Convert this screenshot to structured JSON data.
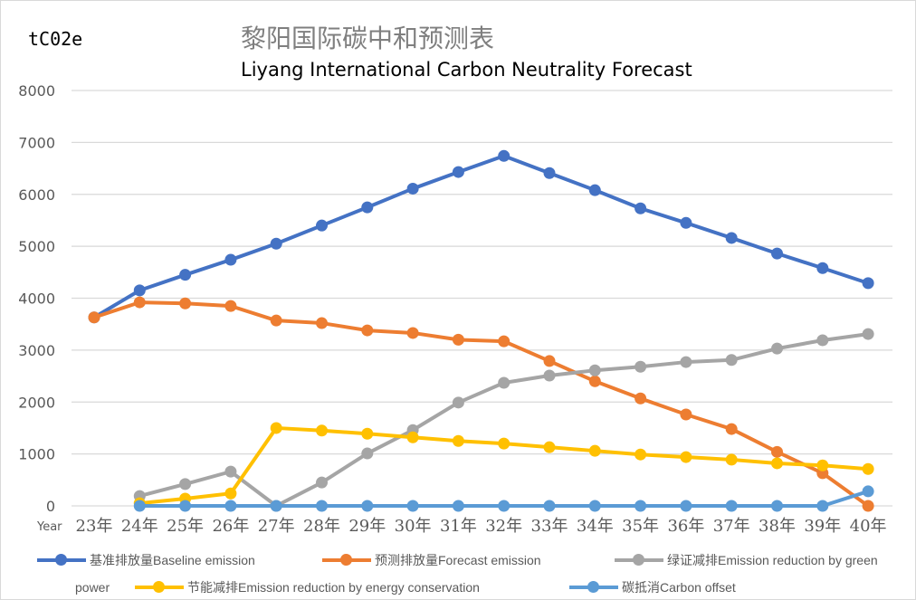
{
  "chart_data": {
    "type": "line",
    "title": "黎阳国际碳中和预测表",
    "subtitle": "Liyang International Carbon Neutrality Forecast",
    "ylabel": "tC02e",
    "xlabel": "Year",
    "ylim": [
      0,
      8000
    ],
    "yticks": [
      "0",
      "1000",
      "2000",
      "3000",
      "4000",
      "5000",
      "6000",
      "7000",
      "8000"
    ],
    "grid": true,
    "legend_position": "bottom",
    "categories": [
      "23年",
      "24年",
      "25年",
      "26年",
      "27年",
      "28年",
      "29年",
      "30年",
      "31年",
      "32年",
      "33年",
      "34年",
      "35年",
      "36年",
      "37年",
      "38年",
      "39年",
      "40年"
    ],
    "series": [
      {
        "name": "基准排放量Baseline emission",
        "color": "#4472c4",
        "values": [
          3630,
          4150,
          4450,
          4740,
          5050,
          5400,
          5750,
          6110,
          6430,
          6740,
          6410,
          6080,
          5730,
          5450,
          5160,
          4860,
          4580,
          4290
        ]
      },
      {
        "name": "预测排放量Forecast emission",
        "color": "#ed7d31",
        "values": [
          3630,
          3920,
          3900,
          3850,
          3570,
          3520,
          3380,
          3330,
          3200,
          3170,
          2790,
          2400,
          2070,
          1760,
          1480,
          1040,
          630,
          0
        ]
      },
      {
        "name": "绿证减排Emission reduction by green power",
        "color": "#a5a5a5",
        "values": [
          null,
          190,
          420,
          660,
          0,
          450,
          1010,
          1460,
          1990,
          2370,
          2510,
          2610,
          2680,
          2770,
          2810,
          3030,
          3190,
          3310
        ]
      },
      {
        "name": "节能减排Emission reduction by energy conservation",
        "color": "#ffc000",
        "values": [
          null,
          50,
          140,
          240,
          1500,
          1450,
          1390,
          1320,
          1250,
          1200,
          1130,
          1060,
          990,
          940,
          890,
          820,
          780,
          710
        ]
      },
      {
        "name": "碳抵消Carbon offset",
        "color": "#5b9bd5",
        "values": [
          null,
          0,
          0,
          0,
          0,
          0,
          0,
          0,
          0,
          0,
          0,
          0,
          0,
          0,
          0,
          0,
          0,
          280
        ]
      }
    ]
  }
}
